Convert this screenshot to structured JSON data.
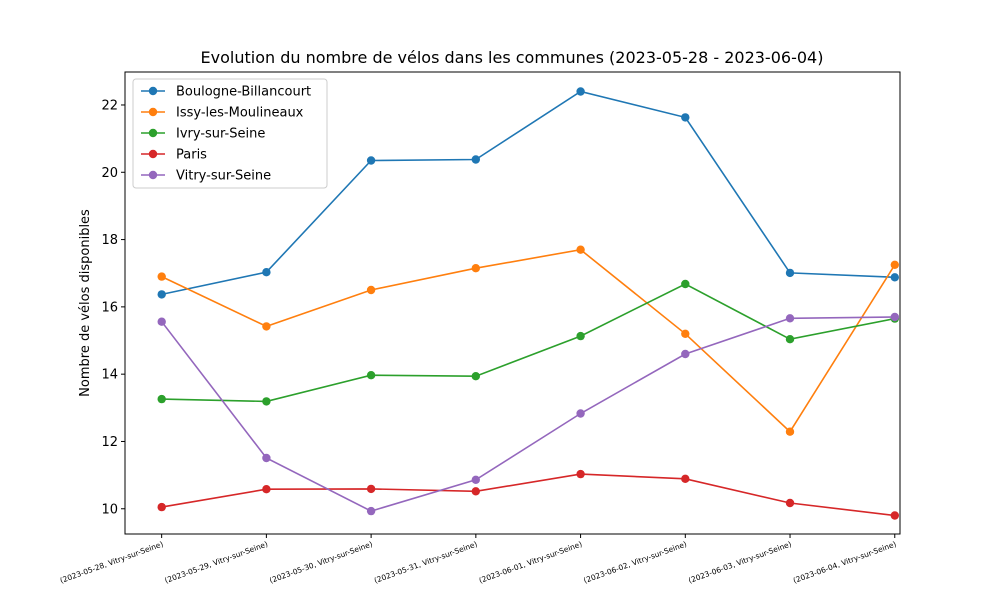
{
  "chart_data": {
    "type": "line",
    "title": "Evolution du nombre de vélos dans les communes (2023-05-28 - 2023-06-04)",
    "xlabel": "",
    "ylabel": "Nombre de vélos disponibles",
    "categories": [
      "(2023-05-28, Vitry-sur-Seine)",
      "(2023-05-29, Vitry-sur-Seine)",
      "(2023-05-30, Vitry-sur-Seine)",
      "(2023-05-31, Vitry-sur-Seine)",
      "(2023-06-01, Vitry-sur-Seine)",
      "(2023-06-02, Vitry-sur-Seine)",
      "(2023-06-03, Vitry-sur-Seine)",
      "(2023-06-04, Vitry-sur-Seine)"
    ],
    "ylim": [
      9.25,
      22.98
    ],
    "yticks": [
      10,
      12,
      14,
      16,
      18,
      20,
      22
    ],
    "grid": false,
    "legend_position": "top-left",
    "series": [
      {
        "name": "Boulogne-Billancourt",
        "color": "#1f77b4",
        "values": [
          16.37,
          17.03,
          20.35,
          20.38,
          22.4,
          21.63,
          17.01,
          16.88
        ]
      },
      {
        "name": "Issy-les-Moulineaux",
        "color": "#ff7f0e",
        "values": [
          16.9,
          15.42,
          16.5,
          17.15,
          17.7,
          15.2,
          12.29,
          17.25
        ]
      },
      {
        "name": "Ivry-sur-Seine",
        "color": "#2ca02c",
        "values": [
          13.26,
          13.19,
          13.97,
          13.94,
          15.13,
          16.68,
          15.04,
          15.65
        ]
      },
      {
        "name": "Paris",
        "color": "#d62728",
        "values": [
          10.05,
          10.58,
          10.59,
          10.52,
          11.03,
          10.89,
          10.17,
          9.8
        ]
      },
      {
        "name": "Vitry-sur-Seine",
        "color": "#9467bd",
        "values": [
          15.56,
          11.51,
          9.93,
          10.86,
          12.83,
          14.6,
          15.66,
          15.7
        ]
      }
    ]
  }
}
